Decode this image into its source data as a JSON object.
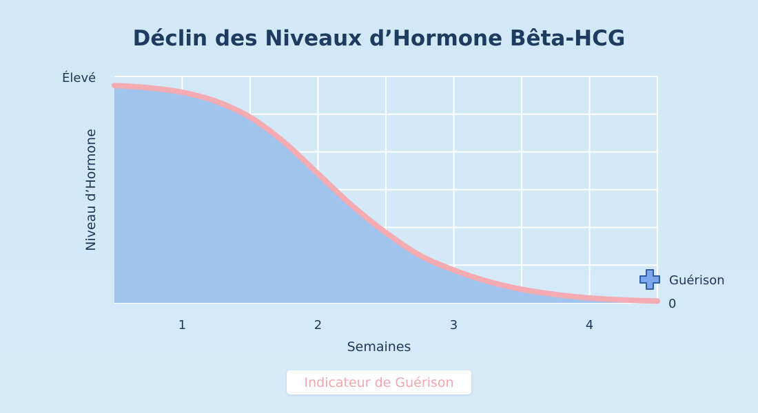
{
  "chart_data": {
    "type": "area",
    "title": "Déclin des Niveaux d’Hormone Bêta-HCG",
    "xlabel": "Semaines",
    "ylabel": "Niveau d’Hormone",
    "x_ticks": [
      1,
      2,
      3,
      4
    ],
    "xlim": [
      0.5,
      4.5
    ],
    "ylim": [
      0,
      1
    ],
    "y_tick_labels": {
      "top": "Élevé",
      "bottom": "0"
    },
    "grid": true,
    "series": [
      {
        "x": [
          0.5,
          0.75,
          1.0,
          1.25,
          1.5,
          1.75,
          2.0,
          2.25,
          2.5,
          2.75,
          3.0,
          3.25,
          3.5,
          3.75,
          4.0,
          4.25,
          4.5
        ],
        "y": [
          0.96,
          0.95,
          0.93,
          0.89,
          0.82,
          0.71,
          0.57,
          0.43,
          0.31,
          0.21,
          0.145,
          0.095,
          0.06,
          0.037,
          0.022,
          0.013,
          0.008
        ]
      }
    ],
    "annotation": {
      "label": "Guérison",
      "icon": "plus-icon",
      "at_x": 4.5
    },
    "legend_label": "Indicateur de Guérison",
    "colors": {
      "fill": "#a0c4ee",
      "line": "#f4abb2",
      "grid": "#ffffff",
      "text": "#1e3556",
      "marker_fill": "#7ea6ea",
      "marker_stroke": "#2f5ea8"
    }
  }
}
